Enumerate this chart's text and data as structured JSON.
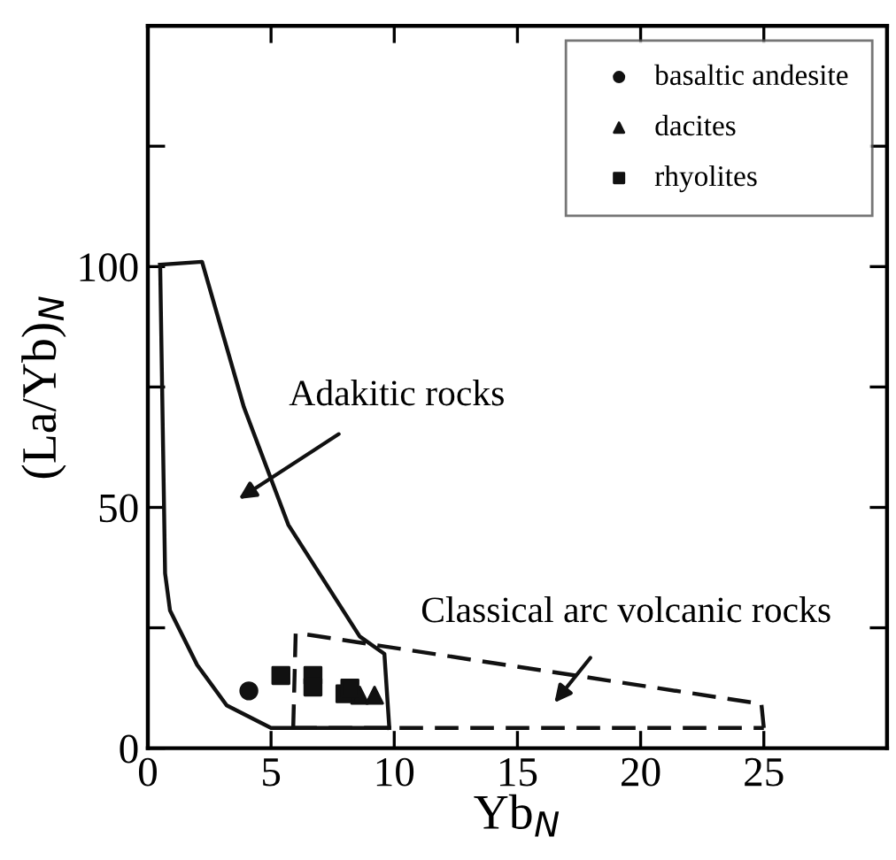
{
  "chart_data": {
    "type": "scatter",
    "xlabel": "Yb$_{N}$",
    "ylabel": "(La/Yb)$_{N}$",
    "xlim": [
      0,
      30
    ],
    "ylim": [
      0,
      150
    ],
    "xticks": [
      0,
      5,
      10,
      15,
      20,
      25
    ],
    "yticks": [
      0,
      {
        "value": 25,
        "label": null
      },
      50,
      {
        "value": 75,
        "label": null
      },
      100,
      {
        "value": 125,
        "label": null
      }
    ],
    "grid": false,
    "legend": "top right",
    "series": [
      {
        "type": "line",
        "color": "#111111",
        "line_style": "solid",
        "marker": "none",
        "x": [
          0.5,
          2.2,
          3.9,
          5.7,
          8.6,
          9.6,
          9.8
        ],
        "values": [
          100.4,
          101,
          70.8,
          46.4,
          23.2,
          19.6,
          4.2
        ]
      },
      {
        "type": "line",
        "color": "#111111",
        "line_style": "solid",
        "marker": "none",
        "x": [
          0.5,
          0.7,
          0.9,
          2.0,
          3.2,
          5.0,
          9.8
        ],
        "values": [
          100.4,
          36.3,
          28.6,
          17.3,
          8.9,
          4.2,
          4.2
        ]
      },
      {
        "type": "line",
        "color": "#111111",
        "line_style": "dashed",
        "marker": "none",
        "x": [
          5.9,
          6.0,
          6.2,
          24.9,
          25.0
        ],
        "values": [
          4.2,
          23.8,
          23.8,
          9.2,
          4.2
        ]
      },
      {
        "type": "line",
        "color": "#111111",
        "line_style": "dashed",
        "marker": "none",
        "x": [
          5.9,
          25.0
        ],
        "values": [
          4.2,
          4.2
        ]
      },
      {
        "name": "basaltic andesite",
        "color": "#111111",
        "marker": "circle",
        "x": [
          4.1
        ],
        "values": [
          11.9
        ]
      },
      {
        "name": "dacites",
        "color": "#111111",
        "marker": "triangle",
        "x": [
          8.6,
          9.2
        ],
        "values": [
          11.0,
          11.0
        ]
      },
      {
        "name": "rhyolites",
        "color": "#111111",
        "marker": "square",
        "x": [
          5.4,
          6.7,
          6.7,
          8.0,
          8.2
        ],
        "values": [
          15.1,
          15.1,
          12.7,
          11.3,
          12.5
        ]
      }
    ],
    "annotations": [
      "Adakitic rocks",
      "Classical arc volcanic rocks"
    ]
  }
}
